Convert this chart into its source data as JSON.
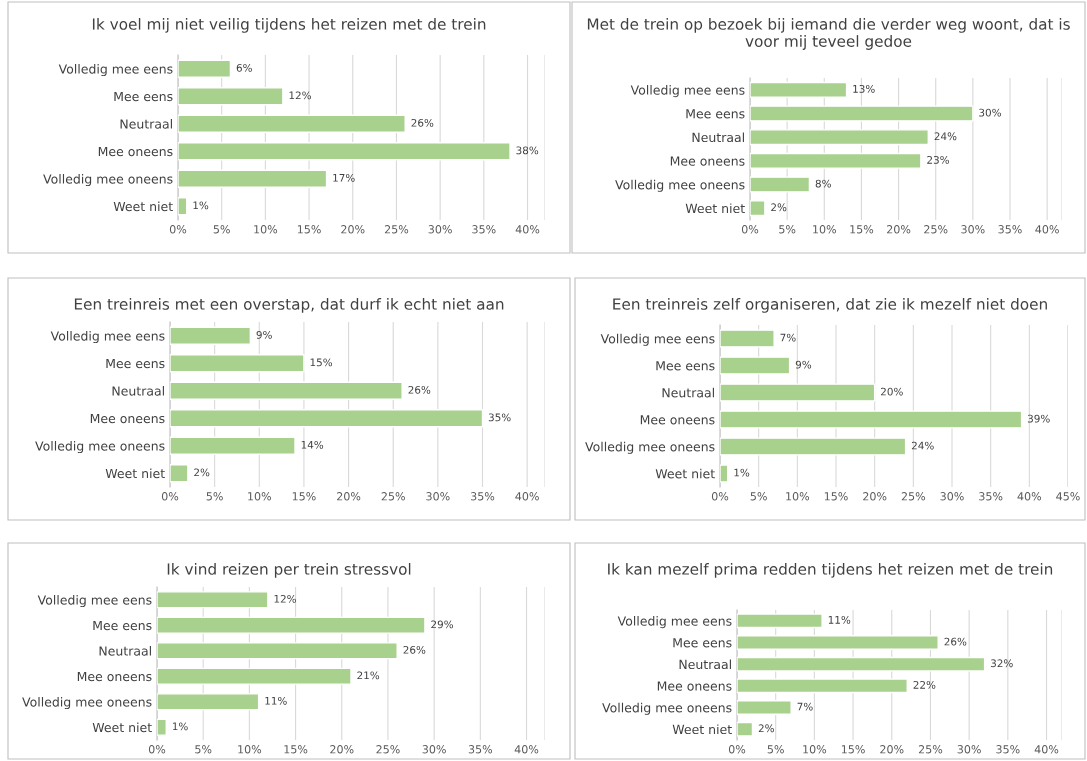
{
  "chart_data": [
    {
      "type": "bar",
      "orientation": "horizontal",
      "title": "Ik voel mij niet veilig tijdens het reizen met de trein",
      "categories": [
        "Volledig mee eens",
        "Mee eens",
        "Neutraal",
        "Mee oneens",
        "Volledig mee oneens",
        "Weet niet"
      ],
      "values": [
        6,
        12,
        26,
        38,
        17,
        1
      ],
      "value_labels": [
        "6%",
        "12%",
        "26%",
        "38%",
        "17%",
        "1%"
      ],
      "color": "#a9d18e",
      "xlim": [
        0,
        42
      ],
      "xticks": [
        {
          "value": 0,
          "label": "0%"
        },
        {
          "value": 5,
          "label": "5%"
        },
        {
          "value": 10,
          "label": "10%"
        },
        {
          "value": 15,
          "label": "15%"
        },
        {
          "value": 20,
          "label": "20%"
        },
        {
          "value": 25,
          "label": "25%"
        },
        {
          "value": 30,
          "label": "30%"
        },
        {
          "value": 35,
          "label": "35%"
        },
        {
          "value": 40,
          "label": "40%"
        }
      ],
      "grid": "x",
      "legend": false
    },
    {
      "type": "bar",
      "orientation": "horizontal",
      "title": "Met de trein op bezoek bij iemand die verder weg woont, dat is voor mij teveel gedoe",
      "categories": [
        "Volledig mee eens",
        "Mee eens",
        "Neutraal",
        "Mee oneens",
        "Volledig mee oneens",
        "Weet niet"
      ],
      "values": [
        13,
        30,
        24,
        23,
        8,
        2
      ],
      "value_labels": [
        "13%",
        "30%",
        "24%",
        "23%",
        "8%",
        "2%"
      ],
      "color": "#a9d18e",
      "xlim": [
        0,
        42
      ],
      "xticks": [
        {
          "value": 0,
          "label": "0%"
        },
        {
          "value": 5,
          "label": "5%"
        },
        {
          "value": 10,
          "label": "10%"
        },
        {
          "value": 15,
          "label": "15%"
        },
        {
          "value": 20,
          "label": "20%"
        },
        {
          "value": 25,
          "label": "25%"
        },
        {
          "value": 30,
          "label": "30%"
        },
        {
          "value": 35,
          "label": "35%"
        },
        {
          "value": 40,
          "label": "40%"
        }
      ],
      "grid": "x",
      "legend": false
    },
    {
      "type": "bar",
      "orientation": "horizontal",
      "title": "Een treinreis met een overstap, dat durf ik echt niet aan",
      "categories": [
        "Volledig mee eens",
        "Mee eens",
        "Neutraal",
        "Mee oneens",
        "Volledig mee oneens",
        "Weet niet"
      ],
      "values": [
        9,
        15,
        26,
        35,
        14,
        2
      ],
      "value_labels": [
        "9%",
        "15%",
        "26%",
        "35%",
        "14%",
        "2%"
      ],
      "color": "#a9d18e",
      "xlim": [
        0,
        42
      ],
      "xticks": [
        {
          "value": 0,
          "label": "0%"
        },
        {
          "value": 5,
          "label": "5%"
        },
        {
          "value": 10,
          "label": "10%"
        },
        {
          "value": 15,
          "label": "15%"
        },
        {
          "value": 20,
          "label": "20%"
        },
        {
          "value": 25,
          "label": "25%"
        },
        {
          "value": 30,
          "label": "30%"
        },
        {
          "value": 35,
          "label": "35%"
        },
        {
          "value": 40,
          "label": "40%"
        }
      ],
      "grid": "x",
      "legend": false
    },
    {
      "type": "bar",
      "orientation": "horizontal",
      "title": "Een treinreis zelf organiseren, dat zie ik mezelf niet doen",
      "categories": [
        "Volledig mee eens",
        "Mee eens",
        "Neutraal",
        "Mee oneens",
        "Volledig mee oneens",
        "Weet niet"
      ],
      "values": [
        7,
        9,
        20,
        39,
        24,
        1
      ],
      "value_labels": [
        "7%",
        "9%",
        "20%",
        "39%",
        "24%",
        "1%"
      ],
      "color": "#a9d18e",
      "xlim": [
        0,
        45
      ],
      "xticks": [
        {
          "value": 0,
          "label": "0%"
        },
        {
          "value": 5,
          "label": "5%"
        },
        {
          "value": 10,
          "label": "10%"
        },
        {
          "value": 15,
          "label": "15%"
        },
        {
          "value": 20,
          "label": "20%"
        },
        {
          "value": 25,
          "label": "25%"
        },
        {
          "value": 30,
          "label": "30%"
        },
        {
          "value": 35,
          "label": "35%"
        },
        {
          "value": 40,
          "label": "40%"
        },
        {
          "value": 45,
          "label": "45%"
        }
      ],
      "grid": "x",
      "legend": false
    },
    {
      "type": "bar",
      "orientation": "horizontal",
      "title": "Ik vind reizen per trein stressvol",
      "categories": [
        "Volledig mee eens",
        "Mee eens",
        "Neutraal",
        "Mee oneens",
        "Volledig mee oneens",
        "Weet niet"
      ],
      "values": [
        12,
        29,
        26,
        21,
        11,
        1
      ],
      "value_labels": [
        "12%",
        "29%",
        "26%",
        "21%",
        "11%",
        "1%"
      ],
      "color": "#a9d18e",
      "xlim": [
        0,
        42
      ],
      "xticks": [
        {
          "value": 0,
          "label": "0%"
        },
        {
          "value": 5,
          "label": "5%"
        },
        {
          "value": 10,
          "label": "10%"
        },
        {
          "value": 15,
          "label": "15%"
        },
        {
          "value": 20,
          "label": "20%"
        },
        {
          "value": 25,
          "label": "25%"
        },
        {
          "value": 30,
          "label": "30%"
        },
        {
          "value": 35,
          "label": "35%"
        },
        {
          "value": 40,
          "label": "40%"
        }
      ],
      "grid": "x",
      "legend": false
    },
    {
      "type": "bar",
      "orientation": "horizontal",
      "title": "Ik kan mezelf prima redden tijdens het reizen met de trein",
      "categories": [
        "Volledig mee eens",
        "Mee eens",
        "Neutraal",
        "Mee oneens",
        "Volledig mee oneens",
        "Weet niet"
      ],
      "values": [
        11,
        26,
        32,
        22,
        7,
        2
      ],
      "value_labels": [
        "11%",
        "26%",
        "32%",
        "22%",
        "7%",
        "2%"
      ],
      "color": "#a9d18e",
      "xlim": [
        0,
        42
      ],
      "xticks": [
        {
          "value": 0,
          "label": "0%"
        },
        {
          "value": 5,
          "label": "5%"
        },
        {
          "value": 10,
          "label": "10%"
        },
        {
          "value": 15,
          "label": "15%"
        },
        {
          "value": 20,
          "label": "20%"
        },
        {
          "value": 25,
          "label": "25%"
        },
        {
          "value": 30,
          "label": "30%"
        },
        {
          "value": 35,
          "label": "35%"
        },
        {
          "value": 40,
          "label": "40%"
        }
      ],
      "grid": "x",
      "legend": false
    }
  ]
}
